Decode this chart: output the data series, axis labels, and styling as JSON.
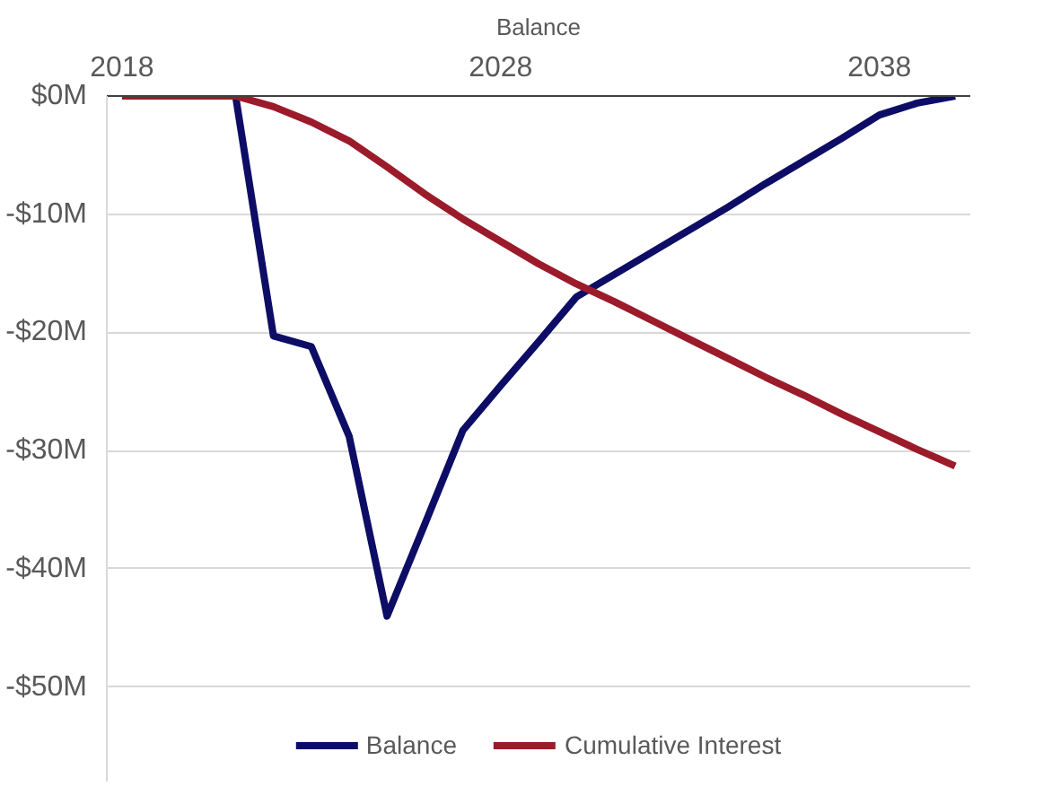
{
  "chart_data": {
    "type": "line",
    "title": "Balance",
    "x": [
      2018,
      2019,
      2020,
      2021,
      2022,
      2023,
      2024,
      2025,
      2026,
      2027,
      2028,
      2029,
      2030,
      2031,
      2032,
      2033,
      2034,
      2035,
      2036,
      2037,
      2038,
      2039,
      2040
    ],
    "series": [
      {
        "name": "Balance",
        "color": "#0d0d66",
        "values": [
          null,
          null,
          0,
          0,
          -20.3,
          -21.2,
          -28.8,
          -44.0,
          -36.2,
          -28.3,
          -24.5,
          -20.8,
          -17.0,
          -15.1,
          -13.2,
          -11.3,
          -9.4,
          -7.4,
          -5.5,
          -3.6,
          -1.6,
          -0.6,
          0
        ]
      },
      {
        "name": "Cumulative Interest",
        "color": "#9b1b2a",
        "values": [
          0,
          0,
          0,
          0,
          -0.9,
          -2.2,
          -3.8,
          -6.0,
          -8.3,
          -10.4,
          -12.3,
          -14.2,
          -15.9,
          -17.4,
          -19.0,
          -20.6,
          -22.2,
          -23.8,
          -25.3,
          -26.9,
          -28.4,
          -29.9,
          -31.3
        ]
      }
    ],
    "xlim": [
      2017.6,
      2040.4
    ],
    "xticks": [
      2018,
      2028,
      2038
    ],
    "ylim": [
      -58,
      0
    ],
    "yticks": [
      {
        "value": 0,
        "label": "$0M"
      },
      {
        "value": -10,
        "label": "-$10M"
      },
      {
        "value": -20,
        "label": "-$20M"
      },
      {
        "value": -30,
        "label": "-$30M"
      },
      {
        "value": -40,
        "label": "-$40M"
      },
      {
        "value": -50,
        "label": "-$50M"
      }
    ],
    "grid": "y",
    "legend": "bottom",
    "line_style": "solid"
  }
}
